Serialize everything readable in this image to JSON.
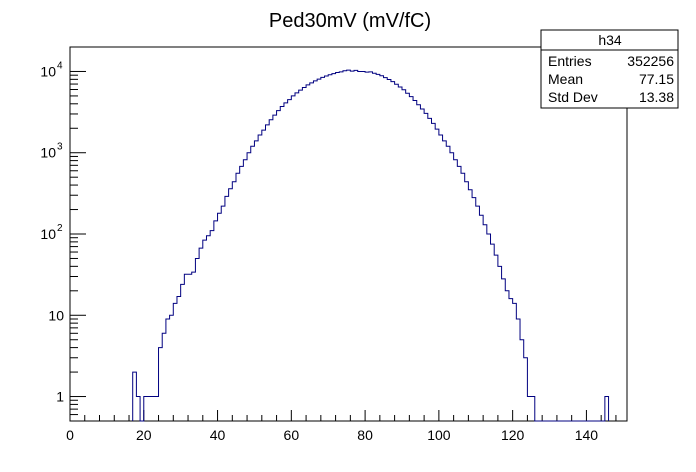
{
  "chart_data": {
    "type": "histogram",
    "title": "Ped30mV (mV/fC)",
    "xlabel": "",
    "ylabel": "",
    "xlim": [
      0,
      151
    ],
    "ylim": [
      0.5,
      20000
    ],
    "y_scale": "log",
    "grid": false,
    "bin_width": 1,
    "x_ticks": [
      0,
      20,
      40,
      60,
      80,
      100,
      120,
      140
    ],
    "y_ticks": [
      {
        "value": 1,
        "label": "1"
      },
      {
        "value": 10,
        "label": "10"
      },
      {
        "value": 100,
        "label": "10",
        "exp": "2"
      },
      {
        "value": 1000,
        "label": "10",
        "exp": "3"
      },
      {
        "value": 10000,
        "label": "10",
        "exp": "4"
      }
    ],
    "line_color": "#000080",
    "bins": [
      [
        17,
        2
      ],
      [
        18,
        1
      ],
      [
        20,
        1
      ],
      [
        21,
        1
      ],
      [
        22,
        1
      ],
      [
        23,
        1
      ],
      [
        24,
        4
      ],
      [
        25,
        6
      ],
      [
        26,
        9
      ],
      [
        27,
        10
      ],
      [
        28,
        14
      ],
      [
        29,
        17
      ],
      [
        30,
        24
      ],
      [
        31,
        32
      ],
      [
        32,
        32
      ],
      [
        33,
        34
      ],
      [
        34,
        50
      ],
      [
        35,
        67
      ],
      [
        36,
        84
      ],
      [
        37,
        95
      ],
      [
        38,
        110
      ],
      [
        39,
        145
      ],
      [
        40,
        180
      ],
      [
        41,
        220
      ],
      [
        42,
        290
      ],
      [
        43,
        360
      ],
      [
        44,
        440
      ],
      [
        45,
        560
      ],
      [
        46,
        680
      ],
      [
        47,
        820
      ],
      [
        48,
        1000
      ],
      [
        49,
        1200
      ],
      [
        50,
        1400
      ],
      [
        51,
        1650
      ],
      [
        52,
        1900
      ],
      [
        53,
        2200
      ],
      [
        54,
        2550
      ],
      [
        55,
        2900
      ],
      [
        56,
        3300
      ],
      [
        57,
        3700
      ],
      [
        58,
        4100
      ],
      [
        59,
        4500
      ],
      [
        60,
        5000
      ],
      [
        61,
        5450
      ],
      [
        62,
        5900
      ],
      [
        63,
        6350
      ],
      [
        64,
        6850
      ],
      [
        65,
        7250
      ],
      [
        66,
        7650
      ],
      [
        67,
        8050
      ],
      [
        68,
        8450
      ],
      [
        69,
        8800
      ],
      [
        70,
        9100
      ],
      [
        71,
        9400
      ],
      [
        72,
        9700
      ],
      [
        73,
        9900
      ],
      [
        74,
        10200
      ],
      [
        75,
        10400
      ],
      [
        76,
        10100
      ],
      [
        77,
        10300
      ],
      [
        78,
        10000
      ],
      [
        79,
        10000
      ],
      [
        80,
        9800
      ],
      [
        81,
        9900
      ],
      [
        82,
        9500
      ],
      [
        83,
        9200
      ],
      [
        84,
        8850
      ],
      [
        85,
        8400
      ],
      [
        86,
        7950
      ],
      [
        87,
        7500
      ],
      [
        88,
        6950
      ],
      [
        89,
        6450
      ],
      [
        90,
        5950
      ],
      [
        91,
        5400
      ],
      [
        92,
        4900
      ],
      [
        93,
        4400
      ],
      [
        94,
        3900
      ],
      [
        95,
        3450
      ],
      [
        96,
        3050
      ],
      [
        97,
        2650
      ],
      [
        98,
        2300
      ],
      [
        99,
        1950
      ],
      [
        100,
        1650
      ],
      [
        101,
        1400
      ],
      [
        102,
        1200
      ],
      [
        103,
        1000
      ],
      [
        104,
        820
      ],
      [
        105,
        680
      ],
      [
        106,
        560
      ],
      [
        107,
        440
      ],
      [
        108,
        350
      ],
      [
        109,
        280
      ],
      [
        110,
        220
      ],
      [
        111,
        170
      ],
      [
        112,
        130
      ],
      [
        113,
        100
      ],
      [
        114,
        75
      ],
      [
        115,
        55
      ],
      [
        116,
        40
      ],
      [
        117,
        28
      ],
      [
        118,
        20
      ],
      [
        119,
        16
      ],
      [
        120,
        14
      ],
      [
        121,
        9
      ],
      [
        122,
        5
      ],
      [
        123,
        3
      ],
      [
        124,
        1
      ],
      [
        125,
        1
      ],
      [
        145,
        1
      ]
    ]
  },
  "stats_box": {
    "name": "h34",
    "rows": [
      {
        "label": "Entries",
        "value": "352256"
      },
      {
        "label": "Mean",
        "value": "77.15"
      },
      {
        "label": "Std Dev",
        "value": "13.38"
      }
    ]
  }
}
